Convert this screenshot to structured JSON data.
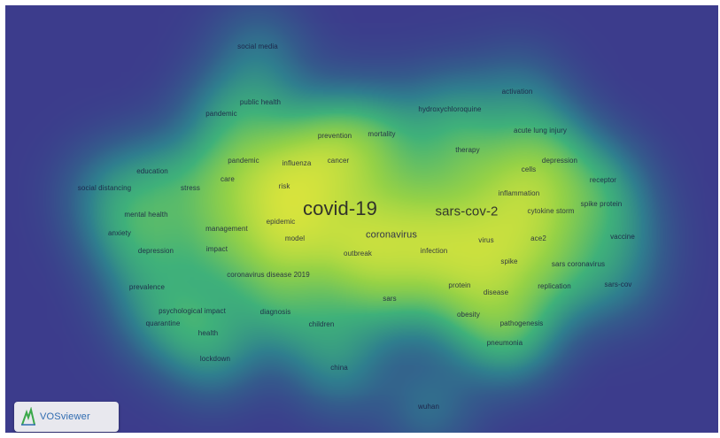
{
  "app": {
    "logo_text": "VOSviewer"
  },
  "colors": {
    "background": "#3c3c8c",
    "low": "#2f7f8e",
    "mid": "#3fb17a",
    "high": "#e8e83a"
  },
  "terms": [
    {
      "id": "covid-19",
      "label": "covid-19",
      "size": "xl",
      "weight": 1.0
    },
    {
      "id": "sars-cov-2",
      "label": "sars-cov-2",
      "size": "l",
      "weight": 0.85
    },
    {
      "id": "coronavirus",
      "label": "coronavirus",
      "size": "m",
      "weight": 0.6
    },
    {
      "id": "social-media",
      "label": "social media",
      "size": "s",
      "weight": 0.3
    },
    {
      "id": "public-health",
      "label": "public health",
      "size": "s",
      "weight": 0.35
    },
    {
      "id": "pandemic",
      "label": "pandemic",
      "size": "s",
      "weight": 0.35
    },
    {
      "id": "prevention",
      "label": "prevention",
      "size": "s",
      "weight": 0.4
    },
    {
      "id": "mortality",
      "label": "mortality",
      "size": "s",
      "weight": 0.4
    },
    {
      "id": "hydroxychloroquine",
      "label": "hydroxychloroquine",
      "size": "s",
      "weight": 0.35
    },
    {
      "id": "activation",
      "label": "activation",
      "size": "s",
      "weight": 0.3
    },
    {
      "id": "acute-lung-injury",
      "label": "acute lung injury",
      "size": "s",
      "weight": 0.3
    },
    {
      "id": "therapy",
      "label": "therapy",
      "size": "s",
      "weight": 0.4
    },
    {
      "id": "education",
      "label": "education",
      "size": "s",
      "weight": 0.3
    },
    {
      "id": "pandemic-2",
      "label": "pandemic",
      "size": "s",
      "weight": 0.4
    },
    {
      "id": "influenza",
      "label": "influenza",
      "size": "s",
      "weight": 0.45
    },
    {
      "id": "cancer",
      "label": "cancer",
      "size": "s",
      "weight": 0.4
    },
    {
      "id": "depression-right",
      "label": "depression",
      "size": "s",
      "weight": 0.35
    },
    {
      "id": "cells",
      "label": "cells",
      "size": "s",
      "weight": 0.4
    },
    {
      "id": "receptor",
      "label": "receptor",
      "size": "s",
      "weight": 0.35
    },
    {
      "id": "care",
      "label": "care",
      "size": "s",
      "weight": 0.4
    },
    {
      "id": "risk",
      "label": "risk",
      "size": "s",
      "weight": 0.5
    },
    {
      "id": "stress",
      "label": "stress",
      "size": "s",
      "weight": 0.35
    },
    {
      "id": "social-distancing",
      "label": "social distancing",
      "size": "s",
      "weight": 0.3
    },
    {
      "id": "inflammation",
      "label": "inflammation",
      "size": "s",
      "weight": 0.45
    },
    {
      "id": "spike-protein",
      "label": "spike protein",
      "size": "s",
      "weight": 0.3
    },
    {
      "id": "cytokine-storm",
      "label": "cytokine storm",
      "size": "s",
      "weight": 0.35
    },
    {
      "id": "mental-health",
      "label": "mental health",
      "size": "s",
      "weight": 0.35
    },
    {
      "id": "epidemic",
      "label": "epidemic",
      "size": "s",
      "weight": 0.45
    },
    {
      "id": "management",
      "label": "management",
      "size": "s",
      "weight": 0.4
    },
    {
      "id": "anxiety",
      "label": "anxiety",
      "size": "s",
      "weight": 0.3
    },
    {
      "id": "model",
      "label": "model",
      "size": "s",
      "weight": 0.5
    },
    {
      "id": "virus",
      "label": "virus",
      "size": "s",
      "weight": 0.45
    },
    {
      "id": "ace2",
      "label": "ace2",
      "size": "s",
      "weight": 0.45
    },
    {
      "id": "vaccine",
      "label": "vaccine",
      "size": "s",
      "weight": 0.3
    },
    {
      "id": "depression-left",
      "label": "depression",
      "size": "s",
      "weight": 0.3
    },
    {
      "id": "impact",
      "label": "impact",
      "size": "s",
      "weight": 0.35
    },
    {
      "id": "outbreak",
      "label": "outbreak",
      "size": "s",
      "weight": 0.55
    },
    {
      "id": "infection",
      "label": "infection",
      "size": "s",
      "weight": 0.55
    },
    {
      "id": "spike",
      "label": "spike",
      "size": "s",
      "weight": 0.35
    },
    {
      "id": "sars-coronavirus",
      "label": "sars coronavirus",
      "size": "s",
      "weight": 0.3
    },
    {
      "id": "coronavirus-disease-2019",
      "label": "coronavirus disease 2019",
      "size": "s",
      "weight": 0.4
    },
    {
      "id": "prevalence",
      "label": "prevalence",
      "size": "s",
      "weight": 0.3
    },
    {
      "id": "protein",
      "label": "protein",
      "size": "s",
      "weight": 0.35
    },
    {
      "id": "disease",
      "label": "disease",
      "size": "s",
      "weight": 0.35
    },
    {
      "id": "replication",
      "label": "replication",
      "size": "s",
      "weight": 0.3
    },
    {
      "id": "sars-cov",
      "label": "sars-cov",
      "size": "s",
      "weight": 0.25
    },
    {
      "id": "sars",
      "label": "sars",
      "size": "s",
      "weight": 0.45
    },
    {
      "id": "psychological-impact",
      "label": "psychological impact",
      "size": "s",
      "weight": 0.3
    },
    {
      "id": "diagnosis",
      "label": "diagnosis",
      "size": "s",
      "weight": 0.35
    },
    {
      "id": "obesity",
      "label": "obesity",
      "size": "s",
      "weight": 0.35
    },
    {
      "id": "quarantine",
      "label": "quarantine",
      "size": "s",
      "weight": 0.3
    },
    {
      "id": "children",
      "label": "children",
      "size": "s",
      "weight": 0.35
    },
    {
      "id": "pathogenesis",
      "label": "pathogenesis",
      "size": "s",
      "weight": 0.35
    },
    {
      "id": "health",
      "label": "health",
      "size": "s",
      "weight": 0.3
    },
    {
      "id": "pneumonia",
      "label": "pneumonia",
      "size": "s",
      "weight": 0.45
    },
    {
      "id": "lockdown",
      "label": "lockdown",
      "size": "s",
      "weight": 0.3
    },
    {
      "id": "china",
      "label": "china",
      "size": "s",
      "weight": 0.4
    },
    {
      "id": "wuhan",
      "label": "wuhan",
      "size": "s",
      "weight": 0.35
    }
  ]
}
